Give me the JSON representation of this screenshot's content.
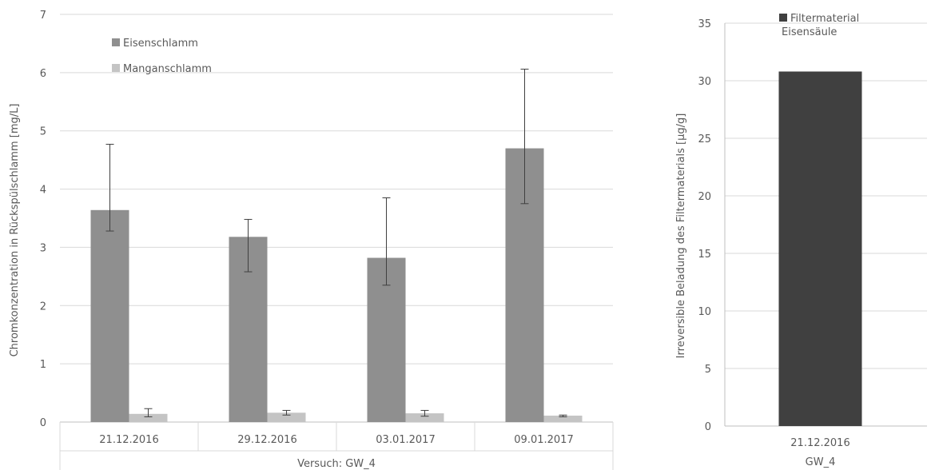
{
  "chart_data": [
    {
      "type": "bar",
      "ylabel": "Chromkonzentration in Rückspülschlamm [mg/L]",
      "group_label": "Versuch: GW_4",
      "categories": [
        "21.12.2016",
        "29.12.2016",
        "03.01.2017",
        "09.01.2017"
      ],
      "ylim": [
        0,
        7
      ],
      "yticks": [
        0,
        1,
        2,
        3,
        4,
        5,
        6,
        7
      ],
      "grid": true,
      "legend_position": "top-left",
      "series": [
        {
          "name": "Eisenschlamm",
          "color": "#8f8f8f",
          "values": [
            3.64,
            3.18,
            2.82,
            4.7
          ],
          "err_low": [
            3.28,
            2.58,
            2.35,
            3.75
          ],
          "err_high": [
            4.77,
            3.48,
            3.85,
            6.06
          ]
        },
        {
          "name": "Manganschlamm",
          "color": "#c4c4c4",
          "values": [
            0.14,
            0.16,
            0.15,
            0.11
          ],
          "err_low": [
            0.09,
            0.12,
            0.1,
            0.09
          ],
          "err_high": [
            0.23,
            0.2,
            0.2,
            0.12
          ]
        }
      ]
    },
    {
      "type": "bar",
      "ylabel": "Irreversible Beladung des Filtermaterials [µg/g]",
      "group_label": "GW_4",
      "categories": [
        "21.12.2016"
      ],
      "ylim": [
        0,
        35
      ],
      "yticks": [
        0,
        5,
        10,
        15,
        20,
        25,
        30,
        35
      ],
      "grid": true,
      "legend_position": "top-left",
      "series": [
        {
          "name": "Filtermaterial Eisensäule",
          "color": "#404040",
          "values": [
            30.8
          ]
        }
      ]
    }
  ]
}
